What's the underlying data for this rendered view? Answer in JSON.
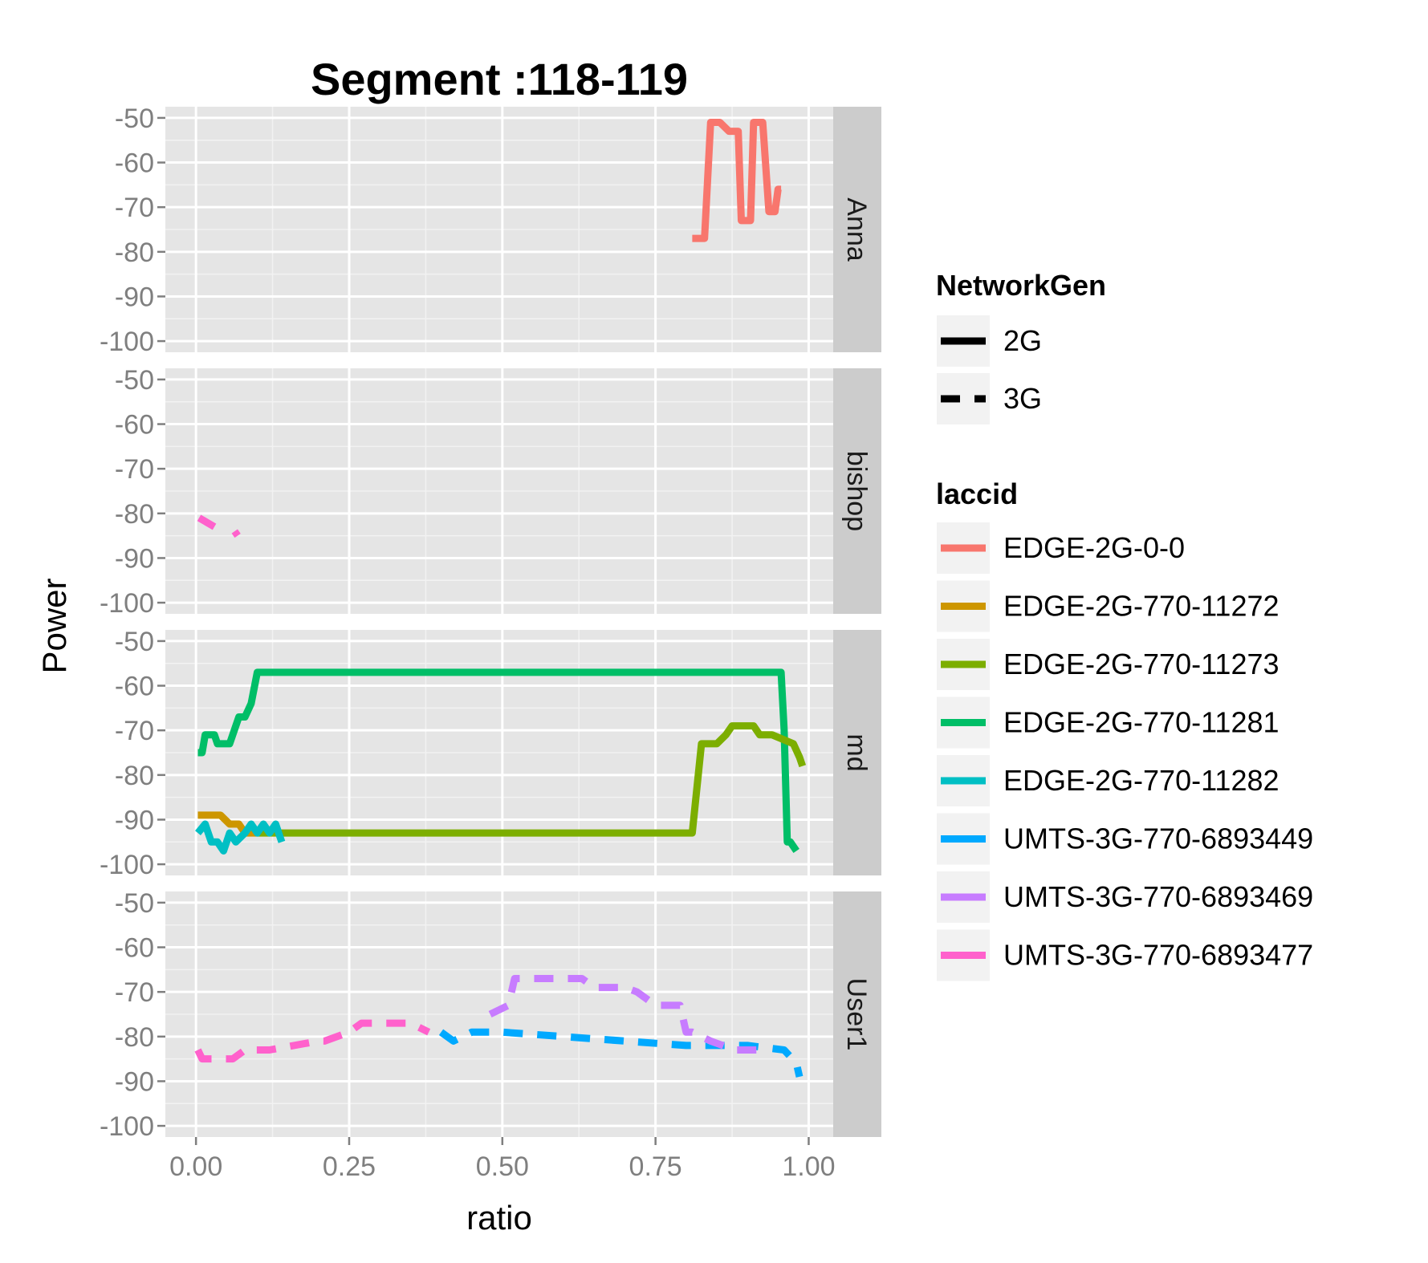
{
  "chart_data": {
    "type": "line",
    "title": "Segment :118-119",
    "xlabel": "ratio",
    "ylabel": "Power",
    "xlim": [
      -0.05,
      1.04
    ],
    "ylim": [
      -100,
      -50
    ],
    "xticks": [
      "0.00",
      "0.25",
      "0.50",
      "0.75",
      "1.00"
    ],
    "xtick_values": [
      0,
      0.25,
      0.5,
      0.75,
      1.0
    ],
    "yticks": [
      "-50",
      "-60",
      "-70",
      "-80",
      "-90",
      "-100"
    ],
    "ytick_values": [
      -50,
      -60,
      -70,
      -80,
      -90,
      -100
    ],
    "panel_background": "#e5e5e5",
    "grid": true,
    "legend_position": "right",
    "facets": [
      "Anna",
      "bishop",
      "md",
      "User1"
    ],
    "legends": {
      "linetype": {
        "title": "NetworkGen",
        "items": [
          {
            "label": "2G",
            "dash": "solid"
          },
          {
            "label": "3G",
            "dash": "dashed"
          }
        ]
      },
      "color": {
        "title": "laccid",
        "items": [
          {
            "label": "EDGE-2G-0-0",
            "color": "#f8766d"
          },
          {
            "label": "EDGE-2G-770-11272",
            "color": "#cd9600"
          },
          {
            "label": "EDGE-2G-770-11273",
            "color": "#7cae00"
          },
          {
            "label": "EDGE-2G-770-11281",
            "color": "#00be67"
          },
          {
            "label": "EDGE-2G-770-11282",
            "color": "#00bfc4"
          },
          {
            "label": "UMTS-3G-770-6893449",
            "color": "#00a9ff"
          },
          {
            "label": "UMTS-3G-770-6893469",
            "color": "#c77cff"
          },
          {
            "label": "UMTS-3G-770-6893477",
            "color": "#ff61cc"
          }
        ]
      }
    },
    "series": [
      {
        "facet": "Anna",
        "laccid": "EDGE-2G-0-0",
        "network": "2G",
        "color": "#f8766d",
        "x": [
          0.81,
          0.83,
          0.835,
          0.84,
          0.855,
          0.87,
          0.885,
          0.89,
          0.905,
          0.91,
          0.915,
          0.925,
          0.935,
          0.945,
          0.95,
          0.955
        ],
        "y": [
          -77,
          -77,
          -64,
          -51,
          -51,
          -53,
          -53,
          -73,
          -73,
          -51,
          -51,
          -51,
          -71,
          -71,
          -66,
          -66
        ]
      },
      {
        "facet": "bishop",
        "laccid": "UMTS-3G-770-6893477",
        "network": "3G",
        "color": "#ff61cc",
        "x": [
          0.005,
          0.03
        ],
        "y": [
          -81,
          -83
        ]
      },
      {
        "facet": "bishop",
        "laccid": "UMTS-3G-770-6893477",
        "network": "3G",
        "color": "#ff61cc",
        "x": [
          0.063,
          0.068
        ],
        "y": [
          -84,
          -85
        ]
      },
      {
        "facet": "md",
        "laccid": "EDGE-2G-770-11281",
        "network": "2G",
        "color": "#00be67",
        "x": [
          0.003,
          0.01,
          0.015,
          0.03,
          0.035,
          0.055,
          0.07,
          0.08,
          0.09,
          0.1,
          0.6,
          0.955,
          0.96,
          0.965,
          0.97,
          0.98
        ],
        "y": [
          -75,
          -75,
          -71,
          -71,
          -73,
          -73,
          -67,
          -67,
          -64,
          -57,
          -57,
          -57,
          -70,
          -95,
          -95,
          -97
        ]
      },
      {
        "facet": "md",
        "laccid": "EDGE-2G-770-11273",
        "network": "2G",
        "color": "#7cae00",
        "x": [
          0.1,
          0.5,
          0.81,
          0.825,
          0.85,
          0.865,
          0.875,
          0.91,
          0.92,
          0.94,
          0.975,
          0.985,
          0.99
        ],
        "y": [
          -93,
          -93,
          -93,
          -73,
          -73,
          -71,
          -69,
          -69,
          -71,
          -71,
          -73,
          -76,
          -78
        ]
      },
      {
        "facet": "md",
        "laccid": "EDGE-2G-770-11272",
        "network": "2G",
        "color": "#cd9600",
        "x": [
          0.003,
          0.04,
          0.055,
          0.07,
          0.08,
          0.1
        ],
        "y": [
          -89,
          -89,
          -91,
          -91,
          -93,
          -93
        ]
      },
      {
        "facet": "md",
        "laccid": "EDGE-2G-770-11282",
        "network": "2G",
        "color": "#00bfc4",
        "x": [
          0.003,
          0.015,
          0.025,
          0.035,
          0.045,
          0.055,
          0.065,
          0.08,
          0.09,
          0.1,
          0.11,
          0.12,
          0.13,
          0.14
        ],
        "y": [
          -93,
          -91,
          -95,
          -95,
          -97,
          -93,
          -95,
          -93,
          -91,
          -93,
          -91,
          -93,
          -91,
          -95
        ]
      },
      {
        "facet": "User1",
        "laccid": "UMTS-3G-770-6893477",
        "network": "3G",
        "color": "#ff61cc",
        "x": [
          0.003,
          0.01,
          0.02,
          0.06,
          0.08,
          0.12,
          0.2,
          0.21,
          0.25,
          0.27,
          0.35,
          0.38
        ],
        "y": [
          -83,
          -85,
          -85,
          -85,
          -83,
          -83,
          -81,
          -81,
          -79,
          -77,
          -77,
          -79
        ]
      },
      {
        "facet": "User1",
        "laccid": "UMTS-3G-770-6893449",
        "network": "3G",
        "color": "#00a9ff",
        "x": [
          0.4,
          0.42,
          0.45,
          0.5,
          0.6,
          0.7,
          0.8,
          0.9,
          0.96,
          0.98,
          0.985
        ],
        "y": [
          -79,
          -81,
          -79,
          -79,
          -80,
          -81,
          -82,
          -82,
          -83,
          -86,
          -89
        ]
      },
      {
        "facet": "User1",
        "laccid": "UMTS-3G-770-6893469",
        "network": "3G",
        "color": "#c77cff",
        "x": [
          0.48,
          0.51,
          0.52,
          0.56,
          0.63,
          0.65,
          0.7,
          0.72,
          0.75,
          0.79,
          0.8,
          0.81,
          0.84,
          0.88,
          0.92
        ],
        "y": [
          -75,
          -73,
          -67,
          -67,
          -67,
          -69,
          -69,
          -70,
          -73,
          -73,
          -79,
          -79,
          -81,
          -83,
          -83
        ]
      }
    ]
  }
}
